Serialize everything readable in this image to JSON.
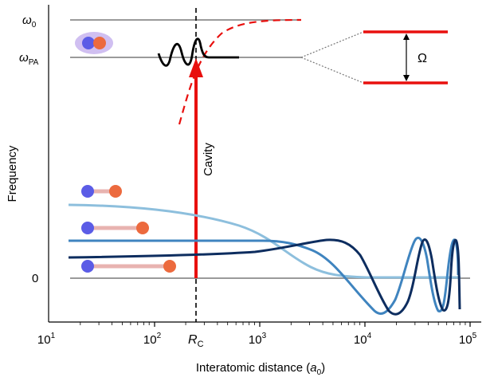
{
  "axes": {
    "xlabel_main": "Interatomic distance (",
    "xlabel_var": "a",
    "xlabel_sub": "0",
    "xlabel_end": ")",
    "ylabel": "Frequency",
    "xscale": "log",
    "xlim": [
      10,
      100000
    ],
    "x_ticks": [
      {
        "base": "10",
        "exp": "1"
      },
      {
        "base": "10",
        "exp": "2"
      },
      {
        "base": "10",
        "exp": "3"
      },
      {
        "base": "10",
        "exp": "4"
      },
      {
        "base": "10",
        "exp": "5"
      }
    ]
  },
  "levels": {
    "omega0": {
      "sym": "ω",
      "sub": "0"
    },
    "omegaPA": {
      "sym": "ω",
      "sub": "PA"
    },
    "zero": "0"
  },
  "markers": {
    "rc_main": "R",
    "rc_sub": "C",
    "cavity": "Cavity",
    "omega_split": "Ω"
  },
  "colors": {
    "grey_line": "#8c8c8c",
    "red": "#e8100e",
    "light_blue": "#8dbfdd",
    "mid_blue": "#3f84bf",
    "dark_blue": "#0d2d5f",
    "atom_blue": "#5b5ce6",
    "atom_orange": "#ec6a3e",
    "bond_pink": "#e8b3b0",
    "halo": "#c8b4ee"
  }
}
